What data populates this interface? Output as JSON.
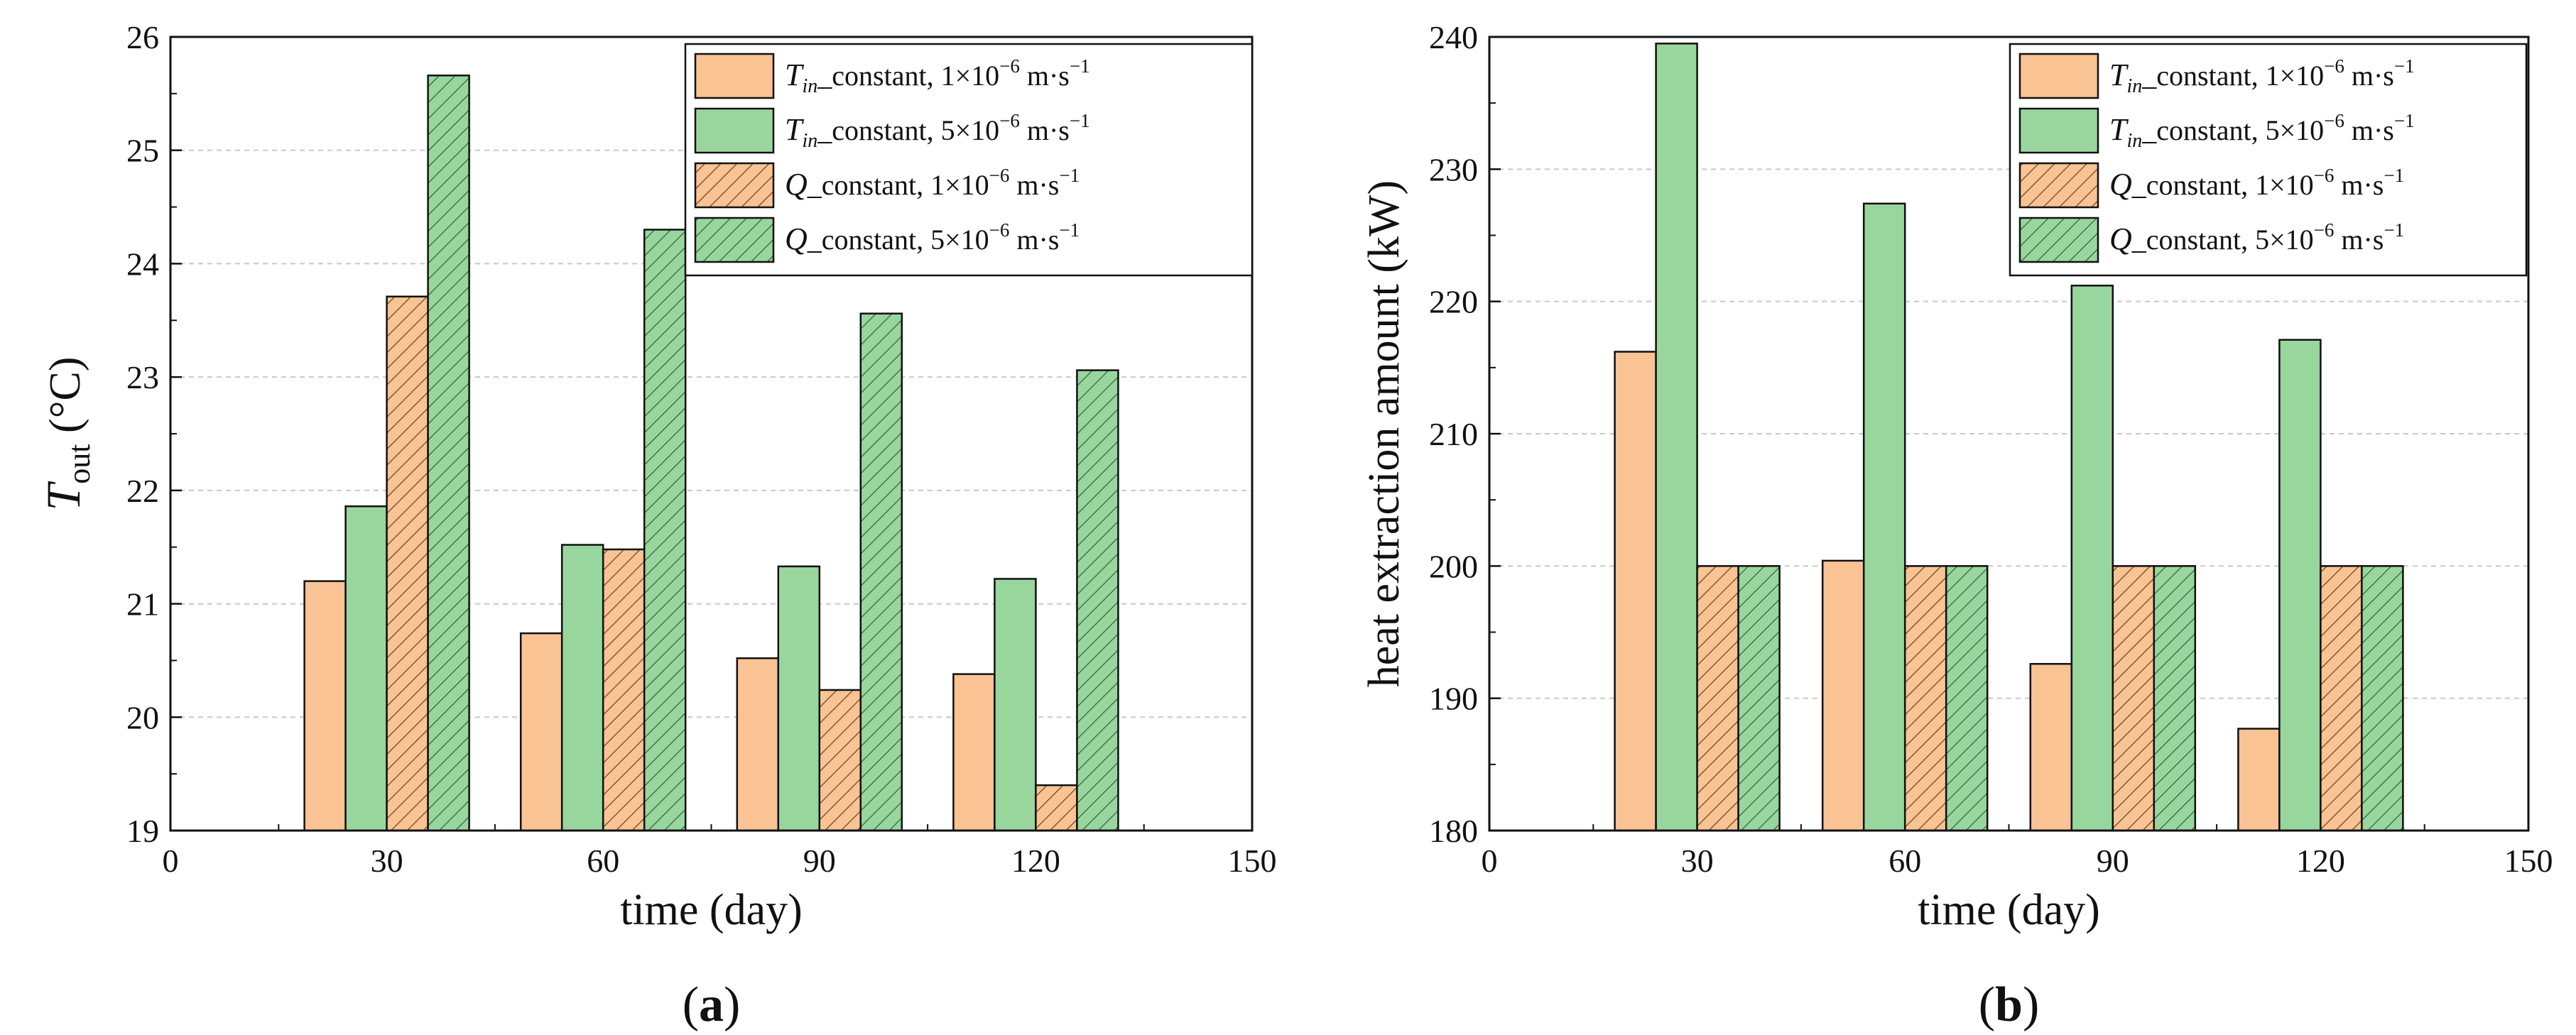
{
  "chart_data": [
    {
      "type": "bar",
      "panel_label": "(a)",
      "panel_letter": "a",
      "title": "",
      "xlabel": "time (day)",
      "ylabel_main": "T",
      "ylabel_sub": "out",
      "ylabel_unit": " (°C)",
      "xlim": [
        0,
        150
      ],
      "ylim": [
        19,
        26
      ],
      "xticks": [
        "0",
        "30",
        "60",
        "90",
        "120",
        "150"
      ],
      "yticks": [
        "19",
        "20",
        "21",
        "22",
        "23",
        "24",
        "25",
        "26"
      ],
      "categories": [
        "30",
        "60",
        "90",
        "120"
      ],
      "grid": true,
      "legend_position": "top-right",
      "series": [
        {
          "name": "Tin_constant, 1×10−6 m·s−1",
          "legend": {
            "sym": "T",
            "sub": "in",
            "rest": "_constant, 1×10",
            "exp": "−6",
            "unit": " m·s",
            "unitexp": "−1"
          },
          "fill": "#F9C394",
          "hatch": false,
          "values": [
            21.2,
            20.74,
            20.52,
            20.38
          ]
        },
        {
          "name": "Tin_constant, 5×10−6 m·s−1",
          "legend": {
            "sym": "T",
            "sub": "in",
            "rest": "_constant, 5×10",
            "exp": "−6",
            "unit": " m·s",
            "unitexp": "−1"
          },
          "fill": "#99D69E",
          "hatch": false,
          "values": [
            21.86,
            21.52,
            21.33,
            21.22
          ]
        },
        {
          "name": "Q_constant, 1×10−6 m·s−1",
          "legend": {
            "sym": "Q",
            "sub": "",
            "rest": "_constant, 1×10",
            "exp": "−6",
            "unit": " m·s",
            "unitexp": "−1"
          },
          "fill": "#F9C394",
          "hatch": true,
          "values": [
            23.71,
            21.48,
            20.24,
            19.4
          ]
        },
        {
          "name": "Q_constant, 5×10−6 m·s−1",
          "legend": {
            "sym": "Q",
            "sub": "",
            "rest": "_constant, 5×10",
            "exp": "−6",
            "unit": " m·s",
            "unitexp": "−1"
          },
          "fill": "#99D69E",
          "hatch": true,
          "values": [
            25.66,
            24.3,
            23.56,
            23.06
          ]
        }
      ]
    },
    {
      "type": "bar",
      "panel_label": "(b)",
      "panel_letter": "b",
      "title": "",
      "xlabel": "time (day)",
      "ylabel_main": "heat extraction amount (kW)",
      "ylabel_sub": "",
      "ylabel_unit": "",
      "xlim": [
        0,
        150
      ],
      "ylim": [
        180,
        240
      ],
      "xticks": [
        "0",
        "30",
        "60",
        "90",
        "120",
        "150"
      ],
      "yticks": [
        "180",
        "190",
        "200",
        "210",
        "220",
        "230",
        "240"
      ],
      "categories": [
        "30",
        "60",
        "90",
        "120"
      ],
      "grid": true,
      "legend_position": "top-right",
      "series": [
        {
          "name": "Tin_constant, 1×10−6 m·s−1",
          "legend": {
            "sym": "T",
            "sub": "in",
            "rest": "_constant, 1×10",
            "exp": "−6",
            "unit": " m·s",
            "unitexp": "−1"
          },
          "fill": "#F9C394",
          "hatch": false,
          "values": [
            216.2,
            200.4,
            192.6,
            187.7
          ]
        },
        {
          "name": "Tin_constant, 5×10−6 m·s−1",
          "legend": {
            "sym": "T",
            "sub": "in",
            "rest": "_constant, 5×10",
            "exp": "−6",
            "unit": " m·s",
            "unitexp": "−1"
          },
          "fill": "#99D69E",
          "hatch": false,
          "values": [
            239.5,
            227.4,
            221.2,
            217.1
          ]
        },
        {
          "name": "Q_constant, 1×10−6 m·s−1",
          "legend": {
            "sym": "Q",
            "sub": "",
            "rest": "_constant, 1×10",
            "exp": "−6",
            "unit": " m·s",
            "unitexp": "−1"
          },
          "fill": "#F9C394",
          "hatch": true,
          "values": [
            200,
            200,
            200,
            200
          ]
        },
        {
          "name": "Q_constant, 5×10−6 m·s−1",
          "legend": {
            "sym": "Q",
            "sub": "",
            "rest": "_constant, 5×10",
            "exp": "−6",
            "unit": " m·s",
            "unitexp": "−1"
          },
          "fill": "#99D69E",
          "hatch": true,
          "values": [
            200,
            200,
            200,
            200
          ]
        }
      ]
    }
  ]
}
